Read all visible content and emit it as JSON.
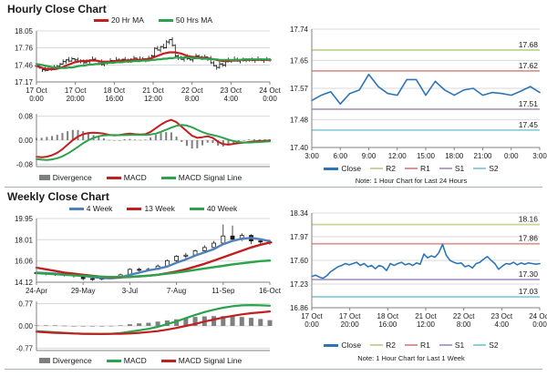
{
  "page": {
    "hourly_title": "Hourly Close Chart",
    "weekly_title": "Weekly Close Chart"
  },
  "colors": {
    "red": "#C02020",
    "green": "#2BA24C",
    "close_blue": "#2E75B6",
    "ma4_blue": "#4F81BD",
    "divergence_gray": "#7F7F7F",
    "r2": "#C3D69B",
    "r1": "#D99694",
    "s1": "#B2A2C7",
    "s2": "#92CDDC"
  },
  "chart_data": {
    "hourly_price": {
      "type": "line",
      "n": 80,
      "ylim": [
        17.17,
        18.05
      ],
      "yticks": [
        "18.05",
        "17.76",
        "17.46",
        "17.17"
      ],
      "xticks": [
        [
          "17 Oct",
          "0:00"
        ],
        [
          "17 Oct",
          "20:00"
        ],
        [
          "18 Oct",
          "16:00"
        ],
        [
          "21 Oct",
          "12:00"
        ],
        [
          "22 Oct",
          "8:00"
        ],
        [
          "23 Oct",
          "4:00"
        ],
        [
          "24 Oct",
          "0:00"
        ]
      ],
      "legend": [
        {
          "label": "20 Hr MA",
          "color": "#C02020"
        },
        {
          "label": "50 Hrs MA",
          "color": "#2BA24C"
        }
      ],
      "ohlc": {
        "close": [
          17.45,
          17.41,
          17.38,
          17.37,
          17.4,
          17.42,
          17.41,
          17.44,
          17.48,
          17.52,
          17.55,
          17.53,
          17.57,
          17.55,
          17.52,
          17.54,
          17.5,
          17.52,
          17.55,
          17.56,
          17.54,
          17.52,
          17.47,
          17.5,
          17.52,
          17.54,
          17.53,
          17.55,
          17.54,
          17.56,
          17.55,
          17.53,
          17.56,
          17.58,
          17.56,
          17.55,
          17.57,
          17.55,
          17.58,
          17.62,
          17.75,
          17.72,
          17.78,
          17.76,
          17.86,
          17.9,
          17.8,
          17.62,
          17.58,
          17.56,
          17.6,
          17.57,
          17.55,
          17.59,
          17.62,
          17.6,
          17.58,
          17.6,
          17.57,
          17.5,
          17.45,
          17.42,
          17.48,
          17.46,
          17.52,
          17.55,
          17.54,
          17.56,
          17.53,
          17.55,
          17.54,
          17.56,
          17.55,
          17.54,
          17.56,
          17.55,
          17.54,
          17.55,
          17.56,
          17.55
        ],
        "hi_off": [
          0.02,
          0.04,
          0.01,
          0.05,
          0.03,
          0.01,
          0.04,
          0.02
        ],
        "lo_off": [
          0.03,
          0.01,
          0.04,
          0.02,
          0.01,
          0.04,
          0.02,
          0.03
        ]
      },
      "series": [
        {
          "name": "20 Hr MA",
          "color": "#C02020",
          "width": 2.2,
          "values": [
            17.44,
            17.43,
            17.41,
            17.4,
            17.39,
            17.39,
            17.39,
            17.4,
            17.41,
            17.43,
            17.45,
            17.47,
            17.49,
            17.51,
            17.52,
            17.53,
            17.53,
            17.53,
            17.54,
            17.54,
            17.54,
            17.53,
            17.52,
            17.52,
            17.52,
            17.52,
            17.53,
            17.53,
            17.54,
            17.54,
            17.54,
            17.54,
            17.55,
            17.55,
            17.55,
            17.55,
            17.56,
            17.56,
            17.57,
            17.58,
            17.6,
            17.62,
            17.64,
            17.66,
            17.67,
            17.68,
            17.68,
            17.68,
            17.67,
            17.66,
            17.64,
            17.62,
            17.61,
            17.6,
            17.6,
            17.59,
            17.59,
            17.59,
            17.58,
            17.57,
            17.56,
            17.55,
            17.54,
            17.53,
            17.53,
            17.53,
            17.54,
            17.54,
            17.54,
            17.55,
            17.55,
            17.55,
            17.55,
            17.55,
            17.55,
            17.55,
            17.55,
            17.55,
            17.55,
            17.55
          ]
        },
        {
          "name": "50 Hrs MA",
          "color": "#2BA24C",
          "width": 2.2,
          "values": [
            17.48,
            17.47,
            17.46,
            17.45,
            17.44,
            17.43,
            17.42,
            17.42,
            17.41,
            17.41,
            17.41,
            17.42,
            17.42,
            17.43,
            17.44,
            17.45,
            17.45,
            17.46,
            17.47,
            17.47,
            17.48,
            17.48,
            17.49,
            17.49,
            17.5,
            17.5,
            17.5,
            17.51,
            17.51,
            17.51,
            17.52,
            17.52,
            17.52,
            17.53,
            17.53,
            17.53,
            17.54,
            17.54,
            17.54,
            17.55,
            17.55,
            17.56,
            17.56,
            17.57,
            17.57,
            17.58,
            17.58,
            17.59,
            17.59,
            17.59,
            17.59,
            17.59,
            17.59,
            17.58,
            17.58,
            17.58,
            17.57,
            17.57,
            17.57,
            17.56,
            17.56,
            17.56,
            17.55,
            17.55,
            17.55,
            17.55,
            17.55,
            17.55,
            17.55,
            17.55,
            17.56,
            17.56,
            17.56,
            17.56,
            17.56,
            17.56,
            17.56,
            17.56,
            17.56,
            17.56
          ]
        }
      ]
    },
    "hourly_macd": {
      "type": "line",
      "n": 46,
      "ylim": [
        -0.088,
        0.088
      ],
      "yticks": [
        "0.08",
        "0.00",
        "-0.08"
      ],
      "bars": "macd-signal",
      "barw": 2,
      "legend": [
        {
          "label": "Divergence",
          "color": "#7F7F7F"
        },
        {
          "label": "MACD",
          "color": "#C02020"
        },
        {
          "label": "MACD Signal Line",
          "color": "#2BA24C"
        }
      ],
      "series": [
        {
          "name": "MACD",
          "role": "macd",
          "color": "#C02020",
          "width": 2,
          "values": [
            -0.055,
            -0.057,
            -0.055,
            -0.05,
            -0.042,
            -0.03,
            -0.015,
            0.0,
            0.012,
            0.02,
            0.024,
            0.025,
            0.024,
            0.022,
            0.018,
            0.016,
            0.017,
            0.02,
            0.022,
            0.02,
            0.019,
            0.02,
            0.028,
            0.04,
            0.052,
            0.062,
            0.068,
            0.06,
            0.045,
            0.03,
            0.015,
            0.008,
            0.01,
            0.013,
            0.008,
            -0.005,
            -0.013,
            -0.015,
            -0.012,
            -0.01,
            -0.008,
            -0.006,
            -0.004,
            -0.003,
            -0.002,
            -0.001
          ]
        },
        {
          "name": "MACD Signal Line",
          "role": "signal",
          "color": "#2BA24C",
          "width": 2,
          "values": [
            -0.063,
            -0.065,
            -0.066,
            -0.064,
            -0.06,
            -0.054,
            -0.045,
            -0.034,
            -0.022,
            -0.01,
            0.0,
            0.008,
            0.013,
            0.016,
            0.017,
            0.017,
            0.017,
            0.017,
            0.018,
            0.018,
            0.018,
            0.018,
            0.019,
            0.022,
            0.028,
            0.035,
            0.042,
            0.048,
            0.051,
            0.049,
            0.043,
            0.035,
            0.027,
            0.021,
            0.017,
            0.013,
            0.008,
            0.002,
            -0.003,
            -0.006,
            -0.008,
            -0.008,
            -0.007,
            -0.006,
            -0.005,
            -0.004
          ]
        }
      ]
    },
    "hourly_pivot": {
      "type": "line",
      "n": 25,
      "ylim": [
        17.4,
        17.74
      ],
      "yticks": [
        "17.74",
        "17.65",
        "17.57",
        "17.48",
        "17.40"
      ],
      "xticks": [
        "3:00",
        "6:00",
        "9:00",
        "12:00",
        "15:00",
        "18:00",
        "21:00",
        "0:00",
        "3:00"
      ],
      "levels": [
        {
          "label": "17.68",
          "value": 17.68,
          "color": "#C3D69B"
        },
        {
          "label": "17.62",
          "value": 17.62,
          "color": "#D99694"
        },
        {
          "label": "17.51",
          "value": 17.51,
          "color": "#B2A2C7"
        },
        {
          "label": "17.45",
          "value": 17.45,
          "color": "#92CDDC"
        }
      ],
      "legend": [
        {
          "label": "Close",
          "color": "#2E75B6"
        },
        {
          "label": "R2",
          "color": "#C3D69B"
        },
        {
          "label": "R1",
          "color": "#D99694"
        },
        {
          "label": "S1",
          "color": "#B2A2C7"
        },
        {
          "label": "S2",
          "color": "#92CDDC"
        }
      ],
      "note": "Note: 1 Hour Chart for Last 24 Hours",
      "series": [
        {
          "name": "Close",
          "color": "#2E75B6",
          "width": 1.6,
          "values": [
            17.535,
            17.55,
            17.56,
            17.525,
            17.555,
            17.565,
            17.61,
            17.575,
            17.555,
            17.55,
            17.595,
            17.595,
            17.55,
            17.59,
            17.565,
            17.55,
            17.565,
            17.57,
            17.55,
            17.558,
            17.555,
            17.55,
            17.562,
            17.575,
            17.558
          ]
        }
      ]
    },
    "weekly_price": {
      "type": "candlestick",
      "n": 26,
      "ylim": [
        14.12,
        19.95
      ],
      "yticks": [
        "19.95",
        "18.01",
        "16.06",
        "14.12"
      ],
      "xticks": [
        "24-Apr",
        "29-May",
        "3-Jul",
        "7-Aug",
        "11-Sep",
        "16-Oct"
      ],
      "legend": [
        {
          "label": "4 Week",
          "color": "#4F81BD"
        },
        {
          "label": "13 Week",
          "color": "#C02020"
        },
        {
          "label": "40 Week",
          "color": "#2BA24C"
        }
      ],
      "ohlc": {
        "open": [
          15.0,
          14.95,
          14.9,
          14.85,
          14.8,
          14.7,
          14.45,
          14.4,
          14.5,
          14.55,
          14.8,
          15.3,
          15.25,
          15.3,
          15.6,
          16.1,
          16.5,
          16.6,
          17.0,
          17.3,
          17.7,
          18.35,
          18.05,
          18.4,
          17.9,
          17.8
        ],
        "high": [
          15.15,
          15.05,
          15.0,
          14.95,
          14.85,
          14.75,
          14.6,
          14.6,
          14.7,
          14.9,
          15.4,
          15.45,
          15.45,
          15.75,
          16.2,
          16.6,
          16.8,
          17.1,
          17.5,
          17.9,
          19.4,
          19.3,
          18.6,
          18.5,
          18.0,
          18.0
        ],
        "low": [
          14.8,
          14.75,
          14.7,
          14.65,
          14.55,
          14.3,
          14.25,
          14.3,
          14.4,
          14.5,
          14.75,
          15.1,
          15.15,
          15.25,
          15.5,
          15.9,
          16.3,
          16.5,
          16.9,
          17.2,
          17.6,
          17.9,
          17.9,
          17.6,
          17.5,
          17.55
        ],
        "close": [
          14.95,
          14.9,
          14.85,
          14.8,
          14.7,
          14.45,
          14.4,
          14.5,
          14.55,
          14.8,
          15.3,
          15.25,
          15.3,
          15.6,
          16.1,
          16.5,
          16.6,
          17.0,
          17.3,
          17.7,
          18.35,
          18.05,
          18.4,
          17.9,
          17.8,
          17.8
        ]
      },
      "series": [
        {
          "name": "4 Week",
          "color": "#4F81BD",
          "width": 2.4,
          "values": [
            15.0,
            14.95,
            14.9,
            14.85,
            14.8,
            14.7,
            14.6,
            14.5,
            14.48,
            14.55,
            14.8,
            15.0,
            15.2,
            15.35,
            15.55,
            15.9,
            16.2,
            16.55,
            16.85,
            17.15,
            17.6,
            17.9,
            18.1,
            18.18,
            18.05,
            17.88
          ]
        },
        {
          "name": "13 Week",
          "color": "#C02020",
          "width": 2.4,
          "values": [
            15.45,
            15.3,
            15.15,
            15.0,
            14.9,
            14.8,
            14.7,
            14.62,
            14.58,
            14.56,
            14.6,
            14.65,
            14.72,
            14.8,
            14.95,
            15.1,
            15.3,
            15.55,
            15.8,
            16.1,
            16.4,
            16.7,
            17.0,
            17.3,
            17.55,
            17.75
          ]
        },
        {
          "name": "40 Week",
          "color": "#2BA24C",
          "width": 2.4,
          "values": [
            14.95,
            14.9,
            14.85,
            14.8,
            14.75,
            14.7,
            14.66,
            14.63,
            14.6,
            14.6,
            14.62,
            14.66,
            14.72,
            14.8,
            14.9,
            15.0,
            15.12,
            15.25,
            15.38,
            15.5,
            15.62,
            15.75,
            15.85,
            15.95,
            16.05,
            16.1
          ]
        }
      ]
    },
    "weekly_macd": {
      "type": "line",
      "n": 26,
      "ylim": [
        -0.85,
        0.85
      ],
      "yticks": [
        "0.77",
        "0.00",
        "-0.77"
      ],
      "bars": "macd-signal",
      "barw": 5,
      "legend": [
        {
          "label": "Divergence",
          "color": "#7F7F7F"
        },
        {
          "label": "MACD",
          "color": "#2BA24C"
        },
        {
          "label": "MACD Signal Line",
          "color": "#C02020"
        }
      ],
      "series": [
        {
          "name": "MACD",
          "role": "macd",
          "color": "#2BA24C",
          "width": 2.2,
          "values": [
            -0.18,
            -0.2,
            -0.22,
            -0.24,
            -0.26,
            -0.27,
            -0.28,
            -0.28,
            -0.27,
            -0.25,
            -0.2,
            -0.15,
            -0.1,
            -0.03,
            0.06,
            0.16,
            0.27,
            0.38,
            0.48,
            0.56,
            0.63,
            0.68,
            0.71,
            0.72,
            0.71,
            0.7
          ]
        },
        {
          "name": "MACD Signal Line",
          "role": "signal",
          "color": "#C02020",
          "width": 2.2,
          "values": [
            -0.2,
            -0.22,
            -0.24,
            -0.25,
            -0.26,
            -0.27,
            -0.275,
            -0.277,
            -0.275,
            -0.27,
            -0.26,
            -0.24,
            -0.21,
            -0.18,
            -0.13,
            -0.07,
            0.0,
            0.07,
            0.15,
            0.22,
            0.29,
            0.35,
            0.4,
            0.44,
            0.47,
            0.5
          ]
        }
      ]
    },
    "weekly_pivot": {
      "type": "line",
      "n": 62,
      "ylim": [
        16.86,
        18.34
      ],
      "yticks": [
        "18.34",
        "17.97",
        "17.60",
        "17.23",
        "16.86"
      ],
      "xticks": [
        [
          "17 Oct",
          "0:00"
        ],
        [
          "17 Oct",
          "20:00"
        ],
        [
          "18 Oct",
          "16:00"
        ],
        [
          "21 Oct",
          "12:00"
        ],
        [
          "22 Oct",
          "8:00"
        ],
        [
          "23 Oct",
          "4:00"
        ],
        [
          "24 Oct",
          "0:00"
        ]
      ],
      "levels": [
        {
          "label": "18.16",
          "value": 18.16,
          "color": "#C3D69B"
        },
        {
          "label": "17.86",
          "value": 17.86,
          "color": "#D99694"
        },
        {
          "label": "17.30",
          "value": 17.3,
          "color": "#B2A2C7"
        },
        {
          "label": "17.03",
          "value": 17.03,
          "color": "#92CDDC"
        }
      ],
      "legend": [
        {
          "label": "Close",
          "color": "#2E75B6"
        },
        {
          "label": "R2",
          "color": "#C3D69B"
        },
        {
          "label": "R1",
          "color": "#D99694"
        },
        {
          "label": "S1",
          "color": "#B2A2C7"
        },
        {
          "label": "S2",
          "color": "#92CDDC"
        }
      ],
      "note": "Note: 1 Hour Chart for Last 1 Week",
      "series": [
        {
          "name": "Close",
          "color": "#2E75B6",
          "width": 1.6,
          "values": [
            17.35,
            17.37,
            17.34,
            17.32,
            17.36,
            17.42,
            17.46,
            17.5,
            17.52,
            17.55,
            17.53,
            17.55,
            17.57,
            17.52,
            17.55,
            17.5,
            17.52,
            17.47,
            17.52,
            17.5,
            17.44,
            17.55,
            17.52,
            17.55,
            17.57,
            17.53,
            17.55,
            17.52,
            17.56,
            17.54,
            17.7,
            17.64,
            17.67,
            17.65,
            17.72,
            17.85,
            17.68,
            17.6,
            17.57,
            17.55,
            17.56,
            17.5,
            17.52,
            17.48,
            17.55,
            17.57,
            17.62,
            17.66,
            17.6,
            17.55,
            17.46,
            17.51,
            17.55,
            17.54,
            17.57,
            17.53,
            17.56,
            17.54,
            17.56,
            17.55,
            17.54,
            17.55
          ]
        }
      ]
    }
  }
}
